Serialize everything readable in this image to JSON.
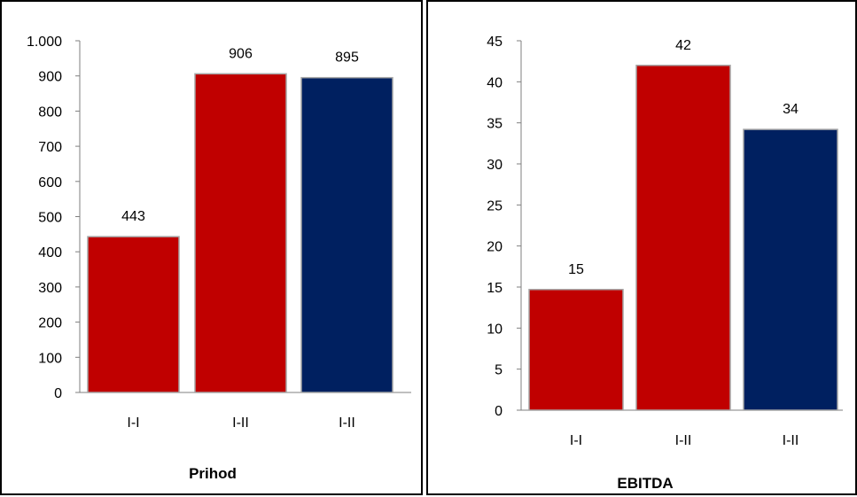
{
  "chart_data": [
    {
      "type": "bar",
      "title": "Prihod",
      "categories": [
        "I-I",
        "I-II",
        "I-II"
      ],
      "values": [
        443,
        906,
        895
      ],
      "data_labels": [
        "443",
        "906",
        "895"
      ],
      "bar_colors": [
        "#c00000",
        "#c00000",
        "#002060"
      ],
      "ylim": [
        0,
        1000
      ],
      "yticks": [
        0,
        100,
        200,
        300,
        400,
        500,
        600,
        700,
        800,
        900,
        1000
      ],
      "ytick_labels": [
        "0",
        "100",
        "200",
        "300",
        "400",
        "500",
        "600",
        "700",
        "800",
        "900",
        "1.000"
      ],
      "grid": false,
      "legend": "none"
    },
    {
      "type": "bar",
      "title": "EBITDA",
      "categories": [
        "I-I",
        "I-II",
        "I-II"
      ],
      "values": [
        14.7,
        42,
        34.2
      ],
      "data_labels": [
        "15",
        "42",
        "34"
      ],
      "bar_colors": [
        "#c00000",
        "#c00000",
        "#002060"
      ],
      "ylim": [
        0,
        45
      ],
      "yticks": [
        0,
        5,
        10,
        15,
        20,
        25,
        30,
        35,
        40,
        45
      ],
      "ytick_labels": [
        "0",
        "5",
        "10",
        "15",
        "20",
        "25",
        "30",
        "35",
        "40",
        "45"
      ],
      "grid": false,
      "legend": "none"
    }
  ]
}
